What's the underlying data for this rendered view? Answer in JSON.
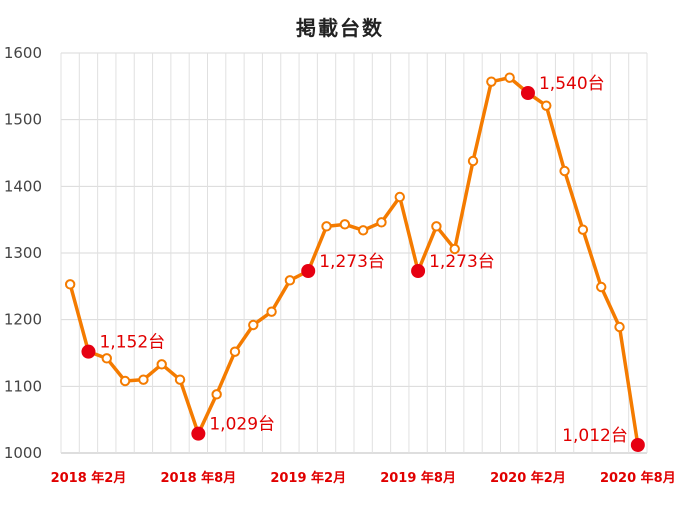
{
  "chart_data": {
    "type": "line",
    "title": "掲載台数",
    "xlabel": "",
    "ylabel": "",
    "ylim": [
      1000,
      1600
    ],
    "yticks": [
      "1000",
      "1100",
      "1200",
      "1300",
      "1400",
      "1500",
      "1600"
    ],
    "grid": true,
    "x": [
      "2018年1月",
      "2018年2月",
      "2018年3月",
      "2018年4月",
      "2018年5月",
      "2018年6月",
      "2018年7月",
      "2018年8月",
      "2018年9月",
      "2018年10月",
      "2018年11月",
      "2018年12月",
      "2019年1月",
      "2019年2月",
      "2019年3月",
      "2019年4月",
      "2019年5月",
      "2019年6月",
      "2019年7月",
      "2019年8月",
      "2019年9月",
      "2019年10月",
      "2019年11月",
      "2019年12月",
      "2020年1月",
      "2020年2月",
      "2020年3月",
      "2020年4月",
      "2020年5月",
      "2020年6月",
      "2020年7月",
      "2020年8月"
    ],
    "xtick_labels": [
      {
        "index": 1,
        "label": "2018 年2月"
      },
      {
        "index": 7,
        "label": "2018 年8月"
      },
      {
        "index": 13,
        "label": "2019 年2月"
      },
      {
        "index": 19,
        "label": "2019 年8月"
      },
      {
        "index": 25,
        "label": "2020 年2月"
      },
      {
        "index": 31,
        "label": "2020 年8月"
      }
    ],
    "series": [
      {
        "color": "#f47b00",
        "values": [
          1253,
          1152,
          1142,
          1108,
          1110,
          1133,
          1110,
          1029,
          1088,
          1152,
          1192,
          1212,
          1259,
          1273,
          1340,
          1343,
          1334,
          1346,
          1384,
          1273,
          1340,
          1306,
          1438,
          1557,
          1563,
          1540,
          1521,
          1423,
          1335,
          1249,
          1189,
          1012
        ]
      }
    ],
    "highlights": [
      {
        "index": 1,
        "label": "1,152台",
        "pos": "right"
      },
      {
        "index": 7,
        "label": "1,029台",
        "pos": "right"
      },
      {
        "index": 13,
        "label": "1,273台",
        "pos": "right"
      },
      {
        "index": 19,
        "label": "1,273台",
        "pos": "right"
      },
      {
        "index": 25,
        "label": "1,540台",
        "pos": "right"
      },
      {
        "index": 31,
        "label": "1,012台",
        "pos": "left"
      }
    ],
    "highlight_color": "#e60012"
  }
}
